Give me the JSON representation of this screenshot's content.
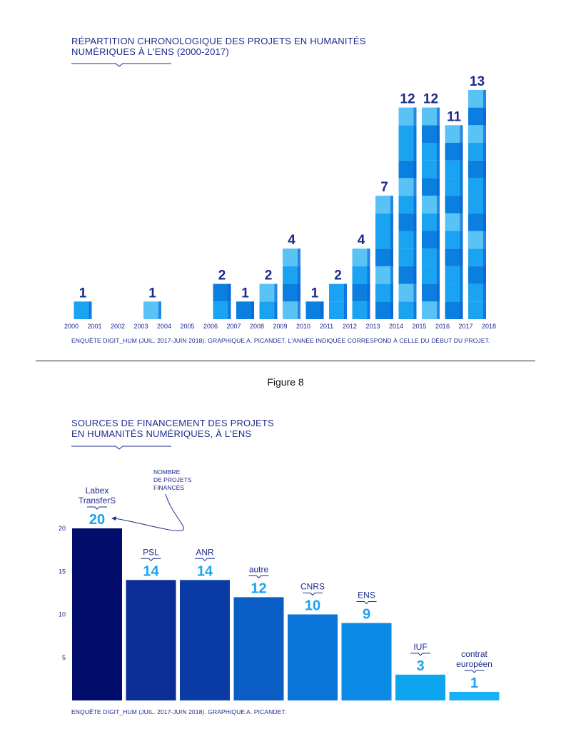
{
  "figure_caption": "Figure 8",
  "chart1": {
    "title_line1": "RÉPARTITION CHRONOLOGIQUE DES PROJETS EN HUMANITÉS",
    "title_line2": "NUMÉRIQUES À L'ENS (2000-2017)",
    "source": "ENQUÊTE DIGIT_HUM (JUIL. 2017-JUIN 2018). GRAPHIQUE A. PICANDET. L'ANNÉE INDIQUÉE CORRESPOND À CELLE DU DÉBUT DU PROJET.",
    "bar_color_light": "#59c3f5",
    "bar_color_mid": "#1aa3f0",
    "bar_color_dark": "#0a7fe0"
  },
  "chart2": {
    "title_line1": "SOURCES DE FINANCEMENT DES PROJETS",
    "title_line2": "EN HUMANITÉS NUMÉRIQUES, À L'ENS",
    "annotation": [
      "NOMBRE",
      "DE PROJETS",
      "FINANCÉS"
    ],
    "source": "ENQUÊTE DIGIT_HUM (JUIL. 2017-JUIN 2018). GRAPHIQUE A. PICANDET."
  },
  "chart_data": [
    {
      "type": "bar",
      "title": "RÉPARTITION CHRONOLOGIQUE DES PROJETS EN HUMANITÉS NUMÉRIQUES À L'ENS (2000-2017)",
      "xlabel": "",
      "ylabel": "",
      "tick_labels": [
        "2000",
        "2001",
        "2002",
        "2003",
        "2004",
        "2005",
        "2006",
        "2007",
        "2008",
        "2009",
        "2010",
        "2011",
        "2012",
        "2013",
        "2014",
        "2015",
        "2016",
        "2017",
        "2018"
      ],
      "categories": [
        "2000",
        "2001",
        "2002",
        "2003",
        "2004",
        "2005",
        "2006",
        "2007",
        "2008",
        "2009",
        "2010",
        "2011",
        "2012",
        "2013",
        "2014",
        "2015",
        "2016",
        "2017"
      ],
      "values": [
        1,
        0,
        0,
        1,
        0,
        0,
        2,
        1,
        2,
        4,
        1,
        2,
        4,
        7,
        12,
        12,
        11,
        13
      ],
      "ylim": [
        0,
        13
      ]
    },
    {
      "type": "bar",
      "title": "SOURCES DE FINANCEMENT DES PROJETS EN HUMANITÉS NUMÉRIQUES, À L'ENS",
      "xlabel": "",
      "ylabel": "",
      "categories": [
        [
          "Labex",
          "TransferS"
        ],
        [
          "PSL"
        ],
        [
          "ANR"
        ],
        [
          "autre"
        ],
        [
          "CNRS"
        ],
        [
          "ENS"
        ],
        [
          "IUF"
        ],
        [
          "contrat",
          "européen"
        ]
      ],
      "values": [
        20,
        14,
        14,
        12,
        10,
        9,
        3,
        1
      ],
      "colors": [
        "#020d6b",
        "#0a2d96",
        "#0b3ca6",
        "#0a5dc4",
        "#0b74d8",
        "#0b8ae6",
        "#0ea5f0",
        "#16b2f3"
      ],
      "label_colors": [
        "#1aa3f0",
        "#1aa3f0",
        "#1aa3f0",
        "#1aa3f0",
        "#1aa3f0",
        "#1aa3f0",
        "#1aa3f0",
        "#1aa3f0"
      ],
      "yticks": [
        5,
        10,
        15,
        20
      ],
      "ylim": [
        0,
        20
      ]
    }
  ]
}
